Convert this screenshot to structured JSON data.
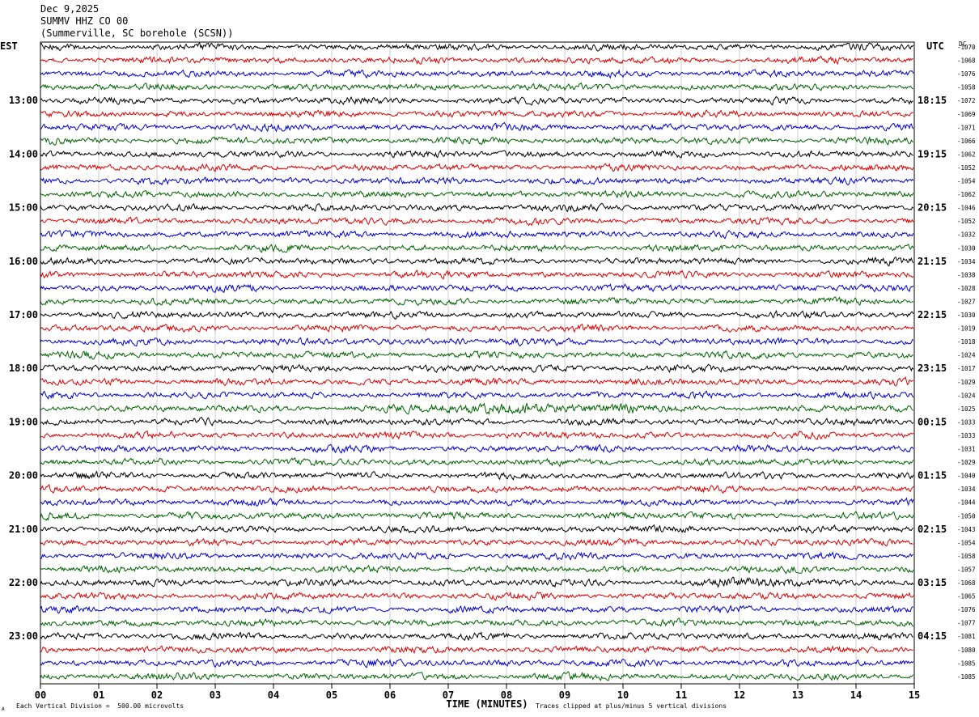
{
  "header": {
    "date": "Dec 9,2025",
    "station": "SUMMV HHZ CO 00",
    "location": "(Summerville, SC borehole (SCSN))"
  },
  "left_timezone": "EST",
  "right_timezone": "UTC",
  "right_column_header": "DC",
  "footer": {
    "scale_note": "Each Vertical Division =  500.00 microvolts",
    "clip_note": "Traces clipped at plus/minus 5 vertical divisions",
    "corner_mark": "A"
  },
  "chart_data": {
    "type": "line",
    "title": "",
    "xlabel": "TIME (MINUTES)",
    "ylabel": "",
    "xlim": [
      0,
      15
    ],
    "x_ticks": [
      "00",
      "01",
      "02",
      "03",
      "04",
      "05",
      "06",
      "07",
      "08",
      "09",
      "10",
      "11",
      "12",
      "13",
      "14",
      "15"
    ],
    "trace_colors": [
      "#000000",
      "#e00000",
      "#0000d0",
      "#006400"
    ],
    "rows_per_hour": 4,
    "minutes_per_row": 15,
    "left_hour_labels": [
      "13:00",
      "14:00",
      "15:00",
      "16:00",
      "17:00",
      "18:00",
      "19:00",
      "20:00",
      "21:00",
      "22:00",
      "23:00"
    ],
    "right_hour_labels": [
      "18:15",
      "19:15",
      "20:15",
      "21:15",
      "22:15",
      "23:15",
      "00:15",
      "01:15",
      "02:15",
      "03:15",
      "04:15"
    ],
    "dc_offsets": [
      "-1070",
      "-1068",
      "-1076",
      "-1058",
      "-1072",
      "-1069",
      "-1071",
      "-1066",
      "-1062",
      "-1052",
      "-1054",
      "-1062",
      "-1046",
      "-1052",
      "-1032",
      "-1030",
      "-1034",
      "-1038",
      "-1028",
      "-1027",
      "-1030",
      "-1019",
      "-1018",
      "-1024",
      "-1017",
      "-1029",
      "-1024",
      "-1025",
      "-1033",
      "-1033",
      "-1031",
      "-1029",
      "-1040",
      "-1034",
      "-1044",
      "-1050",
      "-1043",
      "-1054",
      "-1058",
      "-1057",
      "-1068",
      "-1065",
      "-1076",
      "-1077",
      "-1081",
      "-1080",
      "-1085",
      "-1085"
    ],
    "events": [
      {
        "row": 22,
        "start_min": 6.5,
        "end_min": 7.8,
        "amplitude": 1.7
      },
      {
        "row": 27,
        "start_min": 6.0,
        "end_min": 10.2,
        "peak_min": 7.8,
        "amplitude": 2.3
      },
      {
        "row": 40,
        "start_min": 11.0,
        "end_min": 13.4,
        "peak_min": 12.4,
        "amplitude": 1.8
      }
    ]
  }
}
